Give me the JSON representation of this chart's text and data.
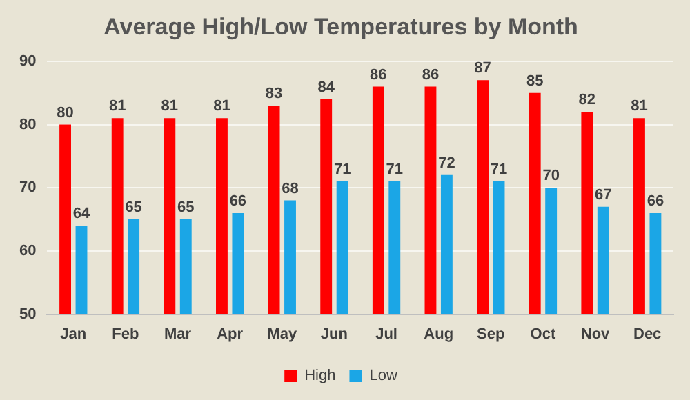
{
  "chart_data": {
    "type": "bar",
    "title": "Average High/Low Temperatures by Month",
    "categories": [
      "Jan",
      "Feb",
      "Mar",
      "Apr",
      "May",
      "Jun",
      "Jul",
      "Aug",
      "Sep",
      "Oct",
      "Nov",
      "Dec"
    ],
    "series": [
      {
        "name": "High",
        "color": "#ff0000",
        "values": [
          80,
          81,
          81,
          81,
          83,
          84,
          86,
          86,
          87,
          85,
          82,
          81
        ]
      },
      {
        "name": "Low",
        "color": "#1ba6e6",
        "values": [
          64,
          65,
          65,
          66,
          68,
          71,
          71,
          72,
          71,
          70,
          67,
          66
        ]
      }
    ],
    "ylim": [
      50,
      90
    ],
    "yticks": [
      50,
      60,
      70,
      80,
      90
    ],
    "grid": "y",
    "legend": "bottom",
    "data_labels": true
  }
}
